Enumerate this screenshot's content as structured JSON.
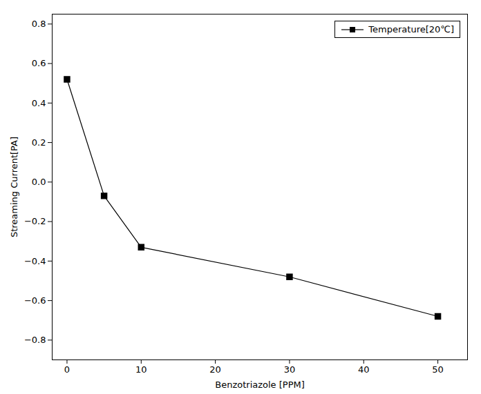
{
  "chart_data": {
    "type": "line",
    "x": [
      0,
      5,
      10,
      30,
      50
    ],
    "series": [
      {
        "name": "Temperature[20℃]",
        "color": "#000000",
        "marker": "square",
        "line_style": "solid",
        "values": [
          0.52,
          -0.07,
          -0.33,
          -0.48,
          -0.68
        ]
      }
    ],
    "xlabel": "Benzotriazole [PPM]",
    "ylabel": "Streaming Current[PA]",
    "xlim": [
      -2,
      54
    ],
    "ylim": [
      -0.9,
      0.85
    ],
    "xticks": [
      0,
      10,
      20,
      30,
      40,
      50
    ],
    "yticks": [
      -0.8,
      -0.6,
      -0.4,
      -0.2,
      {
        "value": 0,
        "label": "0.0"
      },
      0.2,
      0.4,
      0.6,
      0.8
    ],
    "legend": "upper right",
    "grid": false
  }
}
